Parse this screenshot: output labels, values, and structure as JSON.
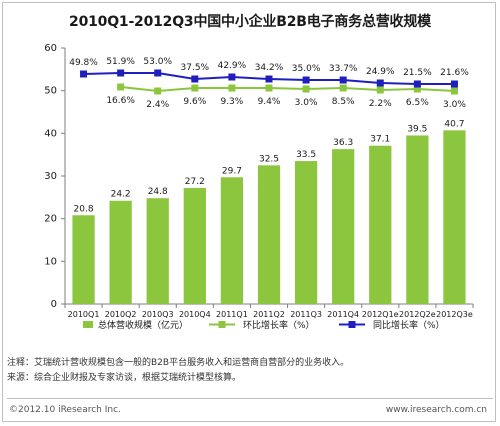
{
  "chart_data": {
    "type": "bar",
    "title": "2010Q1-2012Q3中国中小企业B2B电子商务总营收规模",
    "categories": [
      "2010Q1",
      "2010Q2",
      "2010Q3",
      "2010Q4",
      "2011Q1",
      "2011Q2",
      "2011Q3",
      "2011Q4",
      "2012Q1e",
      "2012Q2e",
      "2012Q3e"
    ],
    "ylim": [
      0,
      60
    ],
    "yticks": [
      0,
      10,
      20,
      30,
      40,
      50,
      60
    ],
    "grid": false,
    "legend_position": "bottom",
    "series": [
      {
        "name": "总体营收规模（亿元）",
        "kind": "bar",
        "color": "#8cc63f",
        "values": [
          20.8,
          24.2,
          24.8,
          27.2,
          29.7,
          32.5,
          33.5,
          36.3,
          37.1,
          39.5,
          40.7
        ],
        "labels": [
          "20.8",
          "24.2",
          "24.8",
          "27.2",
          "29.7",
          "32.5",
          "33.5",
          "36.3",
          "37.1",
          "39.5",
          "40.7"
        ]
      },
      {
        "name": "环比增长率（%）",
        "kind": "line",
        "color": "#8cc63f",
        "values": [
          null,
          16.6,
          2.4,
          9.6,
          9.3,
          9.4,
          3.0,
          8.5,
          2.2,
          6.5,
          3.0
        ],
        "labels": [
          "",
          "16.6%",
          "2.4%",
          "9.6%",
          "9.3%",
          "9.4%",
          "3.0%",
          "8.5%",
          "2.2%",
          "6.5%",
          "3.0%"
        ]
      },
      {
        "name": "同比增长率（%）",
        "kind": "line",
        "color": "#1f1fbf",
        "values": [
          49.8,
          51.9,
          53.0,
          37.5,
          42.9,
          34.2,
          35.0,
          33.7,
          24.9,
          21.5,
          21.6
        ],
        "labels": [
          "49.8%",
          "51.9%",
          "53.0%",
          "37.5%",
          "42.9%",
          "34.2%",
          "35.0%",
          "33.7%",
          "24.9%",
          "21.5%",
          "21.6%"
        ]
      }
    ]
  },
  "notes": {
    "line1": "注释：艾瑞统计营收规模包含一般的B2B平台服务收入和运营商自营部分的业务收入。",
    "line2": "来源：综合企业财报及专家访谈，根据艾瑞统计模型核算。"
  },
  "footer": {
    "left": "©2012.10 iResearch Inc.",
    "right": "www.iresearch.com.cn"
  }
}
